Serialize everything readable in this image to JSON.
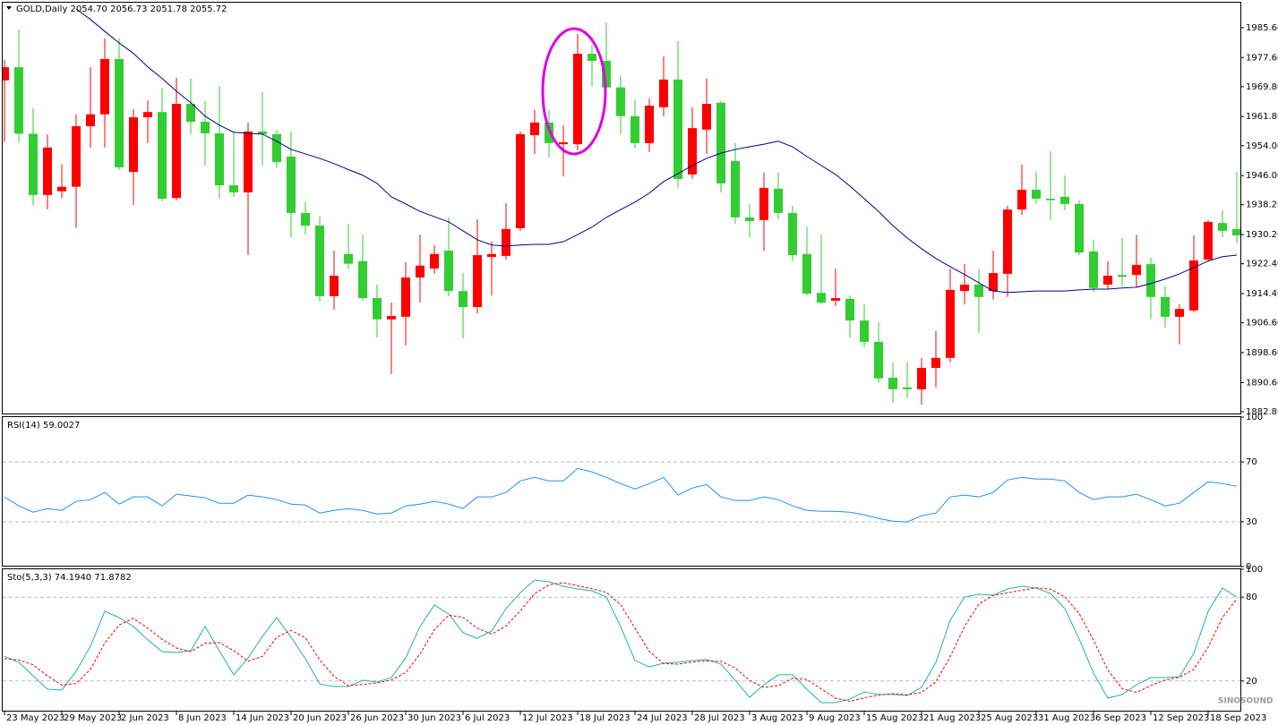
{
  "chart_data": [
    {
      "type": "candlestick",
      "title": "GOLD,Daily  2054.70 2056.73 2051.78 2055.72",
      "categories": [
        "23 May 2023",
        null,
        null,
        null,
        "29 May 2023",
        null,
        null,
        null,
        "2 Jun 2023",
        null,
        null,
        null,
        "8 Jun 2023",
        null,
        null,
        null,
        "14 Jun 2023",
        null,
        null,
        null,
        "20 Jun 2023",
        null,
        null,
        null,
        "26 Jun 2023",
        null,
        null,
        null,
        "30 Jun 2023",
        null,
        null,
        null,
        "6 Jul 2023",
        null,
        null,
        null,
        "12 Jul 2023",
        null,
        null,
        null,
        "18 Jul 2023",
        null,
        null,
        null,
        "24 Jul 2023",
        null,
        null,
        null,
        "28 Jul 2023",
        null,
        null,
        null,
        "3 Aug 2023",
        null,
        null,
        null,
        "9 Aug 2023",
        null,
        null,
        null,
        "15 Aug 2023",
        null,
        null,
        null,
        "21 Aug 2023",
        null,
        null,
        null,
        "25 Aug 2023",
        null,
        null,
        null,
        "31 Aug 2023",
        null,
        null,
        null,
        "6 Sep 2023",
        null,
        null,
        null,
        "12 Sep 2023",
        null,
        null,
        null,
        "18 Sep 2023",
        null,
        null
      ],
      "open": [
        1975,
        1957.2,
        1940.8,
        1953.5,
        1943,
        1959.2,
        1962.4,
        1977.2,
        1948.2,
        1961.6,
        1963.0,
        1939.8,
        1965.2,
        1960.4,
        1957.3,
        1943.4,
        1941.5,
        1957.8,
        1957.1,
        1949.6,
        1936.0,
        1932.6,
        1913.7,
        1919.2,
        1922.4,
        1913.2,
        1907.5,
        1908.4,
        1918.7,
        1921.9,
        1925.0,
        1915.1,
        1910.8,
        1924.7,
        1925,
        1931.7,
        1957.1,
        1960.2,
        1954.7,
        1954.9,
        1978.6,
        1976.7,
        1969.6,
        1961.9,
        1954.7,
        1964.7,
        1971.7,
        1945.1,
        1958.7,
        1965.2,
        1943.9,
        1934.8,
        1933.8,
        1942.7,
        1936.0,
        1924.7,
        1914.4,
        1912.0,
        1913.2,
        1907.2,
        1901.5,
        1891.7,
        1888.8,
        1888.8,
        1894.5,
        1897.2,
        1915.4,
        1916.8,
        1913.5,
        1919.9,
        1936.9,
        1942.2,
        1939.8,
        1939.4,
        1938.4,
        1925.4,
        1915.9,
        1919.2,
        1918.9,
        1922.1,
        1913.5,
        1908.2,
        1910.3,
        1923.3,
        1933.6,
        1931.2,
        1930.0
      ],
      "high": [
        1977,
        1985,
        1964,
        1957,
        1949,
        1962.4,
        1975,
        1982.7,
        1982.7,
        1963.8,
        1966,
        1969.5,
        1972.2,
        1972,
        1966,
        1970,
        1957.8,
        1960.2,
        1968.3,
        1958.3,
        1957.8,
        1938.9,
        1935,
        1925.9,
        1933.1,
        1930.2,
        1916.8,
        1912,
        1922.8,
        1930.2,
        1927.4,
        1934.8,
        1919.9,
        1934.3,
        1928.3,
        1938.6,
        1957.8,
        1963.6,
        1963.6,
        1959.5,
        1983.9,
        1981,
        1987,
        1972.6,
        1966.2,
        1966.7,
        1977.9,
        1982,
        1964.3,
        1972,
        1966,
        1954.7,
        1938.4,
        1946.8,
        1946.8,
        1937.9,
        1932.2,
        1930.2,
        1921.1,
        1913.9,
        1911.5,
        1906.8,
        1896,
        1896,
        1897.2,
        1904.4,
        1921.1,
        1922.3,
        1921.1,
        1925.9,
        1937.9,
        1948.9,
        1947,
        1952.5,
        1946,
        1939.4,
        1928.8,
        1923,
        1929.3,
        1930.2,
        1924,
        1916.3,
        1911.5,
        1930,
        1934.1,
        1936.7,
        1947
      ],
      "low": [
        1955,
        1955,
        1938,
        1937,
        1940,
        1932,
        1953.5,
        1953.5,
        1947.5,
        1938.1,
        1954.7,
        1939.1,
        1939.4,
        1957.1,
        1948.7,
        1939.8,
        1940.3,
        1924.7,
        1948.7,
        1948,
        1929.5,
        1930.2,
        1912.3,
        1910.1,
        1921.1,
        1912.5,
        1902.7,
        1892.9,
        1900.5,
        1912,
        1919.7,
        1913.7,
        1902.4,
        1909.1,
        1913.9,
        1923.5,
        1931.2,
        1951.8,
        1950.9,
        1945.8,
        1952.8,
        1969.8,
        1969.1,
        1957.1,
        1953.3,
        1952.3,
        1961.9,
        1942.7,
        1945.1,
        1951.8,
        1941.5,
        1933.1,
        1929.5,
        1925.9,
        1934.3,
        1923.1,
        1913.9,
        1911.5,
        1911.1,
        1902.7,
        1900.0,
        1890.5,
        1885.2,
        1886.4,
        1884.7,
        1889.3,
        1896,
        1911.5,
        1903.9,
        1912.8,
        1913.5,
        1935.5,
        1938.4,
        1934.1,
        1936.7,
        1924.7,
        1914.9,
        1915.6,
        1916.3,
        1915.9,
        1907.5,
        1905.3,
        1900.8,
        1909.4,
        1923.1,
        1929.5,
        1927.9
      ],
      "close": [
        1971.5,
        1975,
        1957.2,
        1940.8,
        1941.8,
        1943,
        1959.2,
        1962.4,
        1977.2,
        1947,
        1961.6,
        1963.0,
        1940,
        1965.2,
        1960.4,
        1957.3,
        1943.4,
        1941.5,
        1957.8,
        1957.1,
        1951.1,
        1936,
        1932.6,
        1913.7,
        1925,
        1923.1,
        1913.2,
        1907.5,
        1908.2,
        1918.7,
        1921.1,
        1925.9,
        1915.1,
        1910.8,
        1924.2,
        1924.5,
        1931.9,
        1956.8,
        1960.2,
        1954.4,
        1954.4,
        1978.6,
        1976.7,
        1969.6,
        1961.9,
        1954.7,
        1964.3,
        1971.7,
        1946.3,
        1958.3,
        1965.5,
        1949.9,
        1934.8,
        1934.1,
        1942.5,
        1936,
        1925,
        1914.6,
        1912.5,
        1913,
        1907.2,
        1901.5,
        1891.9,
        1889.3,
        1888.8,
        1894.5,
        1897.2,
        1915.1,
        1916.8,
        1915.1,
        1919.7,
        1936.9,
        1942.2,
        1939.8,
        1940.3,
        1938.4,
        1925.7,
        1916.8,
        1919.4,
        1919.4,
        1922.3,
        1913.5,
        1908.2,
        1909.9,
        1923.5,
        1933.3,
        1931.7
      ],
      "up_color": "#32cd32",
      "down_color": "#ff0000",
      "line_values": [
        null,
        null,
        null,
        null,
        null,
        1990.6,
        1987.8,
        1984.6,
        1981.5,
        1978.7,
        1975.1,
        1972.0,
        1968.6,
        1965.5,
        1961.9,
        1959.5,
        1957.6,
        1957.3,
        1957.1,
        1955.2,
        1953.0,
        1951.8,
        1950.6,
        1949.2,
        1947.6,
        1946.1,
        1943.9,
        1940.3,
        1938.4,
        1936.4,
        1935.0,
        1933.6,
        1931.2,
        1928.8,
        1927.4,
        1927.1,
        1927.4,
        1927.6,
        1927.6,
        1928.3,
        1930.2,
        1932.2,
        1934.8,
        1936.9,
        1938.9,
        1941.3,
        1944.4,
        1946.5,
        1948.7,
        1950.6,
        1952.0,
        1953.0,
        1953.7,
        1954.4,
        1955.2,
        1953.7,
        1951.1,
        1948.7,
        1946.3,
        1943.2,
        1939.8,
        1936.4,
        1932.6,
        1929.3,
        1926.4,
        1923.8,
        1921.6,
        1919.5,
        1917.3,
        1915.1,
        1914.7,
        1914.9,
        1915.1,
        1915.1,
        1915.1,
        1915.4,
        1915.6,
        1915.6,
        1915.9,
        1916.1,
        1917.1,
        1918.3,
        1919.7,
        1921.4,
        1923.1,
        1924.3,
        1924.7
      ],
      "line_color": "#00008b",
      "ylim": [
        1882.3,
        1993.0
      ],
      "yticks": [
        {
          "value": 1985.6,
          "label": "1985.60"
        },
        {
          "value": 1977.6,
          "label": "1977.60"
        },
        {
          "value": 1969.8,
          "label": "1969.80"
        },
        {
          "value": 1961.8,
          "label": "1961.80"
        },
        {
          "value": 1954.0,
          "label": "1954.00"
        },
        {
          "value": 1946.0,
          "label": "1946.00"
        },
        {
          "value": 1938.2,
          "label": "1938.20"
        },
        {
          "value": 1930.2,
          "label": "1930.20"
        },
        {
          "value": 1922.4,
          "label": "1922.40"
        },
        {
          "value": 1914.4,
          "label": "1914.40"
        },
        {
          "value": 1906.6,
          "label": "1906.60"
        },
        {
          "value": 1898.6,
          "label": "1898.60"
        },
        {
          "value": 1890.6,
          "label": "1890.60"
        },
        {
          "value": 1882.8,
          "label": "1882.80"
        }
      ]
    },
    {
      "type": "line",
      "title": "RSI(14) 59.0027",
      "series": [
        {
          "color": "#1e90ff",
          "values": [
            46.6,
            40.6,
            36.4,
            38.8,
            37.6,
            43.6,
            44.8,
            49.6,
            41.8,
            46.6,
            46.6,
            40.6,
            48.4,
            47.2,
            46.0,
            42.4,
            42.4,
            47.8,
            46.6,
            44.8,
            41.8,
            41.2,
            35.8,
            37.6,
            38.8,
            37.6,
            35.2,
            35.8,
            40.6,
            41.8,
            43.6,
            41.8,
            38.8,
            46.6,
            46.6,
            49.6,
            57.3,
            59.7,
            57.3,
            57.3,
            65.7,
            63.3,
            59.7,
            55.5,
            51.9,
            55.5,
            59.7,
            47.8,
            52.5,
            54.9,
            46.6,
            44.2,
            44.2,
            46.6,
            44.8,
            40.6,
            37.6,
            37.0,
            37.0,
            36.4,
            34.6,
            32.2,
            30.4,
            29.9,
            34.0,
            35.8,
            46.6,
            47.8,
            46.6,
            49.6,
            57.9,
            59.7,
            58.5,
            58.5,
            57.3,
            49.6,
            44.8,
            46.6,
            46.6,
            48.4,
            44.8,
            40.6,
            42.4,
            49.6,
            56.7,
            55.5,
            53.7
          ]
        }
      ],
      "ylim": [
        0,
        100
      ],
      "yticks": [
        0,
        30,
        70,
        100
      ],
      "levels": [
        30,
        70
      ]
    },
    {
      "type": "line",
      "title": "Sto(5,3,3) 74.1940 71.8782",
      "series": [
        {
          "color": "#20b2aa",
          "values": [
            37.8,
            33.3,
            23.7,
            14.1,
            13.5,
            26.9,
            44.9,
            69.9,
            65.4,
            59.0,
            49.4,
            41.0,
            40.4,
            41.7,
            59.0,
            41.7,
            24.4,
            36.5,
            51.9,
            65.4,
            51.3,
            35.9,
            17.9,
            16.0,
            16.0,
            20.5,
            19.2,
            22.4,
            36.5,
            59.0,
            74.4,
            67.9,
            54.5,
            50.6,
            55.8,
            71.8,
            83.3,
            92.3,
            91.0,
            87.8,
            85.9,
            84.6,
            80.1,
            59.0,
            34.6,
            30.1,
            32.7,
            33.3,
            34.6,
            35.3,
            32.1,
            20.5,
            8.3,
            17.3,
            24.4,
            24.4,
            14.1,
            4.5,
            4.5,
            7.1,
            12.2,
            10.3,
            10.3,
            9.6,
            15.4,
            33.3,
            63.5,
            80.1,
            82.1,
            81.4,
            85.9,
            87.8,
            86.5,
            82.7,
            71.8,
            50.0,
            25.6,
            7.7,
            10.3,
            17.3,
            22.4,
            22.4,
            23.1,
            39.7,
            69.9,
            86.5,
            80.1
          ]
        },
        {
          "color": "#ff0000",
          "dashed": true,
          "values": [
            36,
            35,
            31.6,
            23.7,
            17.1,
            18.2,
            28.4,
            47.2,
            60.1,
            64.8,
            57.9,
            49.8,
            43.6,
            41.0,
            47.0,
            47.5,
            41.7,
            34.2,
            37.6,
            51.3,
            56.2,
            50.9,
            35.0,
            23.3,
            16.6,
            17.5,
            18.6,
            20.7,
            26.0,
            39.3,
            56.6,
            67.1,
            65.6,
            57.7,
            53.6,
            59.4,
            70.3,
            82.5,
            88.9,
            90.4,
            88.2,
            86.1,
            83.5,
            74.6,
            57.9,
            41.2,
            32.5,
            32.0,
            33.5,
            34.4,
            34.0,
            29.3,
            20.3,
            15.4,
            16.7,
            22.0,
            21.0,
            14.3,
            7.7,
            5.4,
            7.9,
            9.9,
            10.9,
            10.1,
            11.8,
            19.4,
            37.4,
            59.0,
            75.2,
            81.2,
            83.1,
            85.0,
            86.7,
            85.7,
            80.3,
            68.2,
            49.1,
            27.8,
            14.5,
            11.8,
            16.7,
            20.7,
            22.6,
            28.4,
            44.2,
            65.4,
            78.8
          ]
        }
      ],
      "ylim": [
        0,
        100
      ],
      "yticks": [
        20,
        80,
        100
      ],
      "levels": [
        20,
        80
      ]
    }
  ],
  "watermark": "SINOSOUND"
}
